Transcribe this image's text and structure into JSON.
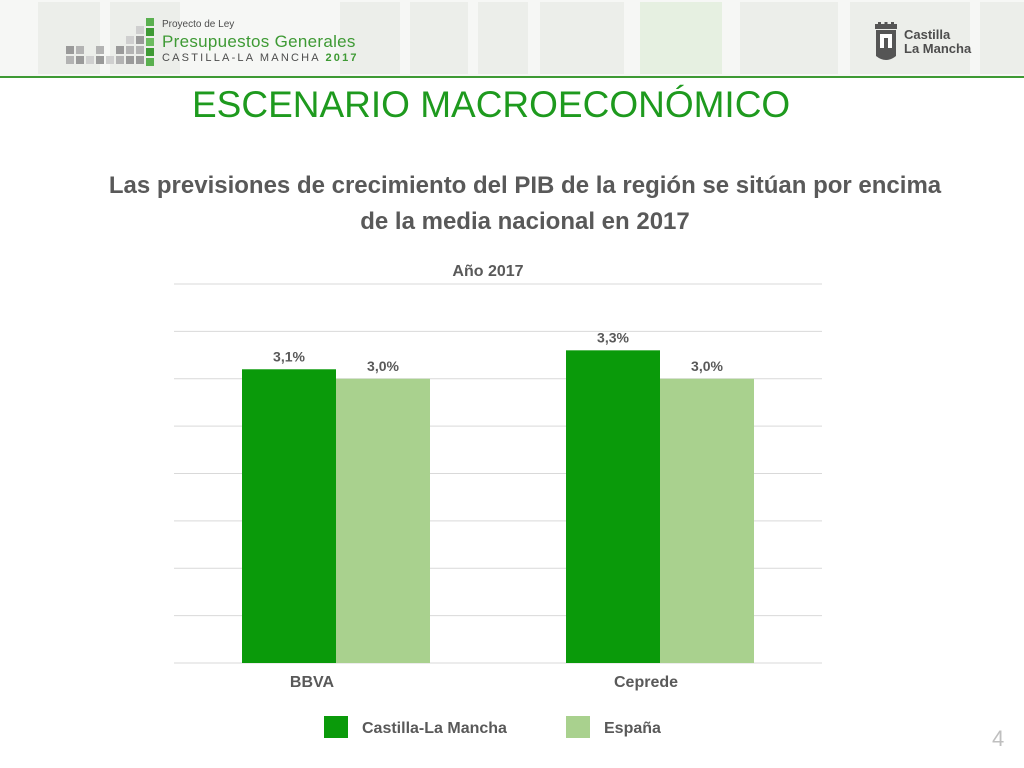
{
  "header": {
    "logo_line1": "Proyecto de Ley",
    "logo_line2": "Presupuestos Generales",
    "logo_line3_prefix": "CASTILLA-LA MANCHA ",
    "logo_line3_year": "2017",
    "brand_line1": "Castilla",
    "brand_line2": "La Mancha"
  },
  "slide": {
    "title": "ESCENARIO MACROECONÓMICO",
    "subtitle": "Las previsiones de crecimiento del PIB de la región se sitúan por encima de la media nacional en 2017",
    "page_number": "4"
  },
  "colors": {
    "accent": "#1e9a1e",
    "series_clm": "#0a9a0a",
    "series_esp": "#a9d18e",
    "text_gray": "#595959"
  },
  "chart_data": {
    "type": "bar",
    "title": "Año 2017",
    "categories": [
      "BBVA",
      "Ceprede"
    ],
    "series": [
      {
        "name": "Castilla-La Mancha",
        "values": [
          3.1,
          3.3
        ],
        "labels": [
          "3,1%",
          "3,3%"
        ],
        "color": "#0a9a0a"
      },
      {
        "name": "España",
        "values": [
          3.0,
          3.0
        ],
        "labels": [
          "3,0%",
          "3,0%"
        ],
        "color": "#a9d18e"
      }
    ],
    "ylim": [
      0,
      4.0
    ],
    "y_step": 0.5,
    "grid": true,
    "legend_position": "bottom"
  }
}
